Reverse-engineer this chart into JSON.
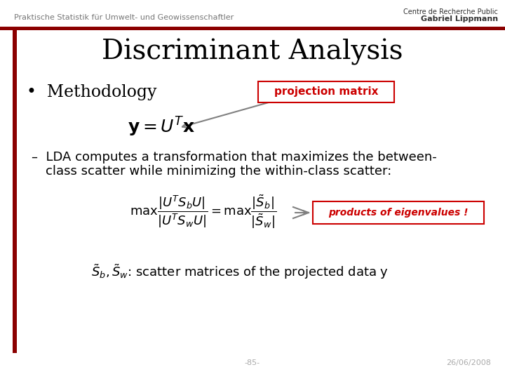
{
  "background_color": "#ffffff",
  "header_text": "Praktische Statistik für Umwelt- und Geowissenschaftler",
  "header_fontsize": 8,
  "header_color": "#777777",
  "title": "Discriminant Analysis",
  "title_fontsize": 28,
  "title_color": "#000000",
  "title_font": "serif",
  "left_bar_color": "#8B0000",
  "top_bar_color": "#8B0000",
  "bullet_text": "Methodology",
  "bullet_fontsize": 17,
  "projection_box_text": "projection matrix",
  "projection_box_color": "#cc0000",
  "projection_box_facecolor": "#ffffff",
  "projection_box_edgecolor": "#cc0000",
  "formula1_fontsize": 18,
  "dash_fontsize": 13,
  "formula2_fontsize": 13,
  "products_box_text": "products of eigenvalues !",
  "products_box_color": "#cc0000",
  "scatter_text": ": scatter matrices of the projected data y",
  "scatter_fontsize": 13,
  "footer_text": "-85-",
  "footer_right_text": "26/06/2008",
  "footer_fontsize": 8,
  "footer_color": "#aaaaaa",
  "logo_text1": "Centre de Recherche Public",
  "logo_text2": "Gabriel Lippmann",
  "logo_fontsize": 7
}
